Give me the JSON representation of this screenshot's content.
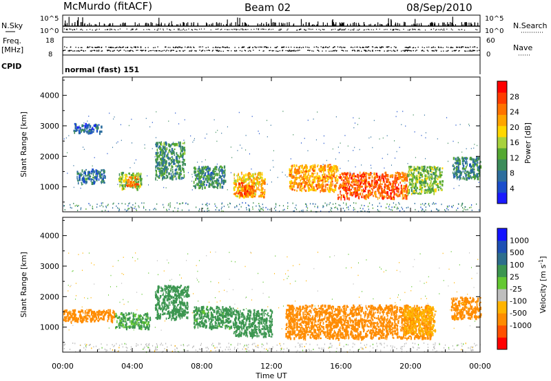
{
  "header": {
    "station": "McMurdo (fitACF)",
    "beam": "Beam 02",
    "date": "08/Sep/2010"
  },
  "strip": {
    "nsky_label": "N.Sky",
    "nsky_ticks": [
      "10^5",
      "10^0"
    ],
    "nsearch_label": "N.Search",
    "nsearch_ticks": [
      "10^5",
      "10^0"
    ],
    "freq_label": "Freq.",
    "freq_unit": "[MHz]",
    "freq_ticks": [
      "18",
      "8"
    ],
    "nave_label": "Nave",
    "nave_ticks": [
      "60",
      "0"
    ],
    "cpid_label": "CPID",
    "cpid_value": "normal (fast) 151"
  },
  "colors": {
    "power": [
      "#1a1aff",
      "#1a4dcc",
      "#2d6e9e",
      "#3c8c5a",
      "#55a832",
      "#a8d23c",
      "#ffd700",
      "#ffa500",
      "#ff7300",
      "#ff3c00",
      "#ff0000"
    ],
    "velocity": [
      "#ff0000",
      "#ff5000",
      "#ff8c00",
      "#ffb400",
      "#bebebe",
      "#64c832",
      "#3c9650",
      "#2d6e8c",
      "#1e50b4",
      "#1414ff"
    ]
  },
  "chart_data": [
    {
      "type": "heatmap",
      "title": "Power",
      "xlabel": "",
      "ylabel": "Slant Range [km]",
      "x_ticks": [
        "00:00",
        "04:00",
        "08:00",
        "12:00",
        "16:00",
        "20:00",
        "00:00"
      ],
      "x_range_hours": [
        0,
        24
      ],
      "ylim": [
        180,
        4600
      ],
      "y_ticks": [
        1000,
        2000,
        3000,
        4000
      ],
      "colorbar": {
        "label": "Power [dB]",
        "ticks": [
          4,
          8,
          12,
          16,
          20,
          24,
          28
        ],
        "range": [
          0,
          32
        ]
      },
      "regions": [
        {
          "t": [
            0.8,
            2.4
          ],
          "r": [
            1150,
            1600
          ],
          "v": 7
        },
        {
          "t": [
            3.2,
            4.5
          ],
          "r": [
            950,
            1500
          ],
          "v": 15
        },
        {
          "t": [
            3.6,
            4.3
          ],
          "r": [
            1050,
            1350
          ],
          "v": 26
        },
        {
          "t": [
            5.3,
            7.0
          ],
          "r": [
            1300,
            2500
          ],
          "v": 10
        },
        {
          "t": [
            7.5,
            9.3
          ],
          "r": [
            1000,
            1700
          ],
          "v": 9
        },
        {
          "t": [
            9.8,
            11.6
          ],
          "r": [
            700,
            1500
          ],
          "v": 21
        },
        {
          "t": [
            10.0,
            11.0
          ],
          "r": [
            750,
            1150
          ],
          "v": 27
        },
        {
          "t": [
            13.0,
            15.8
          ],
          "r": [
            900,
            1750
          ],
          "v": 23
        },
        {
          "t": [
            15.8,
            19.8
          ],
          "r": [
            650,
            1500
          ],
          "v": 27
        },
        {
          "t": [
            19.8,
            21.8
          ],
          "r": [
            800,
            1700
          ],
          "v": 14
        },
        {
          "t": [
            22.4,
            24.0
          ],
          "r": [
            1300,
            2000
          ],
          "v": 9
        },
        {
          "t": [
            0.6,
            2.2
          ],
          "r": [
            2800,
            3100
          ],
          "v": 6
        }
      ]
    },
    {
      "type": "heatmap",
      "title": "Velocity",
      "xlabel": "Time UT",
      "ylabel": "Slant Range [km]",
      "x_ticks": [
        "00:00",
        "04:00",
        "08:00",
        "12:00",
        "16:00",
        "20:00",
        "00:00"
      ],
      "x_range_hours": [
        0,
        24
      ],
      "ylim": [
        180,
        4600
      ],
      "y_ticks": [
        1000,
        2000,
        3000,
        4000
      ],
      "colorbar": {
        "label": "Velocity [m s-1]",
        "label_main": "Velocity  [m s",
        "label_exp": "-1",
        "label_close": "]",
        "ticks": [
          1000,
          500,
          100,
          25,
          -25,
          -100,
          -500,
          -1000
        ]
      },
      "regions": [
        {
          "t": [
            0.0,
            3.0
          ],
          "r": [
            1200,
            1600
          ],
          "v": -300
        },
        {
          "t": [
            3.0,
            5.0
          ],
          "r": [
            1000,
            1500
          ],
          "v": 120
        },
        {
          "t": [
            5.3,
            7.2
          ],
          "r": [
            1300,
            2400
          ],
          "v": 200
        },
        {
          "t": [
            7.5,
            9.8
          ],
          "r": [
            1000,
            1700
          ],
          "v": 150
        },
        {
          "t": [
            9.8,
            12.0
          ],
          "r": [
            700,
            1600
          ],
          "v": 350
        },
        {
          "t": [
            12.8,
            21.2
          ],
          "r": [
            650,
            1750
          ],
          "v": -300
        },
        {
          "t": [
            19.6,
            21.4
          ],
          "r": [
            800,
            1700
          ],
          "v": -80
        },
        {
          "t": [
            22.3,
            24.0
          ],
          "r": [
            1300,
            2000
          ],
          "v": -150
        }
      ]
    }
  ]
}
